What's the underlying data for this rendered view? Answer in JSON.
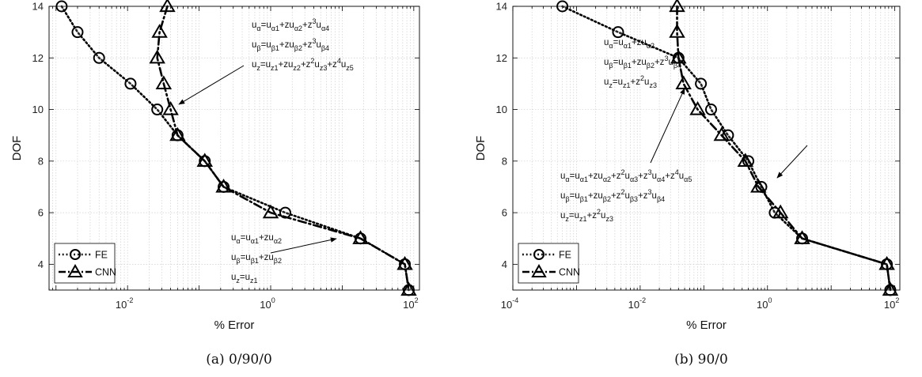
{
  "chart_data": [
    {
      "type": "line",
      "caption": "(a) 0/90/0",
      "xlabel": "% Error",
      "ylabel": "DOF",
      "x_scale": "log",
      "xlim": [
        0.0008,
        120
      ],
      "ylim": [
        3,
        14
      ],
      "xticks": [
        {
          "value": 0.01,
          "base": "10",
          "exp": "-2"
        },
        {
          "value": 1,
          "base": "10",
          "exp": "0"
        },
        {
          "value": 100,
          "base": "10",
          "exp": "2"
        }
      ],
      "yticks": [
        4,
        6,
        8,
        10,
        12,
        14
      ],
      "grid": true,
      "legend_position": "bottom-left",
      "series": [
        {
          "name": "FE",
          "marker": "circle",
          "linestyle": "dotted",
          "x": [
            0.0012,
            0.002,
            0.004,
            0.011,
            0.026,
            0.05,
            0.12,
            0.22,
            1.6,
            18,
            75,
            85
          ],
          "y": [
            14,
            13,
            12,
            11,
            10,
            9,
            8,
            7,
            6,
            5,
            4,
            3
          ]
        },
        {
          "name": "CNN",
          "marker": "triangle",
          "linestyle": "dashdot",
          "x": [
            0.036,
            0.028,
            0.026,
            0.032,
            0.04,
            0.05,
            0.12,
            0.22,
            1.0,
            18,
            75,
            85
          ],
          "y": [
            14,
            13,
            12,
            11,
            10,
            9,
            8,
            7,
            6,
            5,
            4,
            3
          ]
        }
      ],
      "annotations": [
        {
          "lines": [
            {
              "parts": [
                [
                  "u",
                  ""
                ],
                [
                  "α",
                  "sub"
                ],
                [
                  "=u",
                  ""
                ],
                [
                  "α1",
                  "sub"
                ],
                [
                  "+zu",
                  ""
                ],
                [
                  "α2",
                  "sub"
                ],
                [
                  "+z",
                  ""
                ],
                [
                  "3",
                  "sup"
                ],
                [
                  "u",
                  ""
                ],
                [
                  "α4",
                  "sub"
                ]
              ]
            },
            {
              "parts": [
                [
                  "u",
                  ""
                ],
                [
                  "β",
                  "sub"
                ],
                [
                  "=u",
                  ""
                ],
                [
                  "β1",
                  "sub"
                ],
                [
                  "+zu",
                  ""
                ],
                [
                  "β2",
                  "sub"
                ],
                [
                  "+z",
                  ""
                ],
                [
                  "3",
                  "sup"
                ],
                [
                  "u",
                  ""
                ],
                [
                  "β4",
                  "sub"
                ]
              ]
            },
            {
              "parts": [
                [
                  "u",
                  ""
                ],
                [
                  "z",
                  "sub"
                ],
                [
                  "=u",
                  ""
                ],
                [
                  "z1",
                  "sub"
                ],
                [
                  "+zu",
                  ""
                ],
                [
                  "z2",
                  "sub"
                ],
                [
                  "+z",
                  ""
                ],
                [
                  "2",
                  "sup"
                ],
                [
                  "u",
                  ""
                ],
                [
                  "z3",
                  "sub"
                ],
                [
                  "+z",
                  ""
                ],
                [
                  "4",
                  "sup"
                ],
                [
                  "u",
                  ""
                ],
                [
                  "z5",
                  "sub"
                ]
              ]
            }
          ]
        },
        {
          "lines": [
            {
              "parts": [
                [
                  "u",
                  ""
                ],
                [
                  "α",
                  "sub"
                ],
                [
                  "=u",
                  ""
                ],
                [
                  "α1",
                  "sub"
                ],
                [
                  "+zu",
                  ""
                ],
                [
                  "α2",
                  "sub"
                ]
              ]
            },
            {
              "parts": [
                [
                  "u",
                  ""
                ],
                [
                  "β",
                  "sub"
                ],
                [
                  "=u",
                  ""
                ],
                [
                  "β1",
                  "sub"
                ],
                [
                  "+zu",
                  ""
                ],
                [
                  "β2",
                  "sub"
                ]
              ]
            },
            {
              "parts": [
                [
                  "u",
                  ""
                ],
                [
                  "z",
                  "sub"
                ],
                [
                  "=u",
                  ""
                ],
                [
                  "z1",
                  "sub"
                ]
              ]
            }
          ]
        }
      ]
    },
    {
      "type": "line",
      "caption": "(b) 90/0",
      "xlabel": "% Error",
      "ylabel": "DOF",
      "x_scale": "log",
      "xlim": [
        0.0001,
        120
      ],
      "ylim": [
        3,
        14
      ],
      "xticks": [
        {
          "value": 0.0001,
          "base": "10",
          "exp": "-4"
        },
        {
          "value": 0.01,
          "base": "10",
          "exp": "-2"
        },
        {
          "value": 1,
          "base": "10",
          "exp": "0"
        },
        {
          "value": 100,
          "base": "10",
          "exp": "2"
        }
      ],
      "yticks": [
        4,
        6,
        8,
        10,
        12,
        14
      ],
      "grid": true,
      "legend_position": "bottom-left",
      "series": [
        {
          "name": "FE",
          "marker": "circle",
          "linestyle": "dotted",
          "x": [
            0.0006,
            0.0045,
            0.04,
            0.09,
            0.13,
            0.24,
            0.5,
            0.8,
            1.3,
            3.5,
            75,
            85
          ],
          "y": [
            14,
            13,
            12,
            11,
            10,
            9,
            8,
            7,
            6,
            5,
            4,
            3
          ]
        },
        {
          "name": "CNN",
          "marker": "triangle",
          "linestyle": "dashdot",
          "x": [
            0.038,
            0.038,
            0.04,
            0.048,
            0.08,
            0.19,
            0.45,
            0.72,
            1.6,
            3.5,
            75,
            85
          ],
          "y": [
            14,
            13,
            12,
            11,
            10,
            9,
            8,
            7,
            6,
            5,
            4,
            3
          ]
        }
      ],
      "annotations": [
        {
          "lines": [
            {
              "parts": [
                [
                  "u",
                  ""
                ],
                [
                  "α",
                  "sub"
                ],
                [
                  "=u",
                  ""
                ],
                [
                  "α1",
                  "sub"
                ],
                [
                  "+zu",
                  ""
                ],
                [
                  "α2",
                  "sub"
                ]
              ]
            },
            {
              "parts": [
                [
                  "u",
                  ""
                ],
                [
                  "β",
                  "sub"
                ],
                [
                  "=u",
                  ""
                ],
                [
                  "β1",
                  "sub"
                ],
                [
                  "+zu",
                  ""
                ],
                [
                  "β2",
                  "sub"
                ],
                [
                  "+z",
                  ""
                ],
                [
                  "3",
                  "sup"
                ],
                [
                  "u",
                  ""
                ],
                [
                  "β4",
                  "sub"
                ]
              ]
            },
            {
              "parts": [
                [
                  "u",
                  ""
                ],
                [
                  "z",
                  "sub"
                ],
                [
                  "=u",
                  ""
                ],
                [
                  "z1",
                  "sub"
                ],
                [
                  "+z",
                  ""
                ],
                [
                  "2",
                  "sup"
                ],
                [
                  "u",
                  ""
                ],
                [
                  "z3",
                  "sub"
                ]
              ]
            }
          ]
        },
        {
          "lines": [
            {
              "parts": [
                [
                  "u",
                  ""
                ],
                [
                  "α",
                  "sub"
                ],
                [
                  "=u",
                  ""
                ],
                [
                  "α1",
                  "sub"
                ],
                [
                  "+zu",
                  ""
                ],
                [
                  "α2",
                  "sub"
                ],
                [
                  "+z",
                  ""
                ],
                [
                  "2",
                  "sup"
                ],
                [
                  "u",
                  ""
                ],
                [
                  "α3",
                  "sub"
                ],
                [
                  "+z",
                  ""
                ],
                [
                  "3",
                  "sup"
                ],
                [
                  "u",
                  ""
                ],
                [
                  "α4",
                  "sub"
                ],
                [
                  "+z",
                  ""
                ],
                [
                  "4",
                  "sup"
                ],
                [
                  "u",
                  ""
                ],
                [
                  "α5",
                  "sub"
                ]
              ]
            },
            {
              "parts": [
                [
                  "u",
                  ""
                ],
                [
                  "β",
                  "sub"
                ],
                [
                  "=u",
                  ""
                ],
                [
                  "β1",
                  "sub"
                ],
                [
                  "+zu",
                  ""
                ],
                [
                  "β2",
                  "sub"
                ],
                [
                  "+z",
                  ""
                ],
                [
                  "2",
                  "sup"
                ],
                [
                  "u",
                  ""
                ],
                [
                  "β3",
                  "sub"
                ],
                [
                  "+z",
                  ""
                ],
                [
                  "3",
                  "sup"
                ],
                [
                  "u",
                  ""
                ],
                [
                  "β4",
                  "sub"
                ]
              ]
            },
            {
              "parts": [
                [
                  "u",
                  ""
                ],
                [
                  "z",
                  "sub"
                ],
                [
                  "=u",
                  ""
                ],
                [
                  "z1",
                  "sub"
                ],
                [
                  "+z",
                  ""
                ],
                [
                  "2",
                  "sup"
                ],
                [
                  "u",
                  ""
                ],
                [
                  "z3",
                  "sub"
                ]
              ]
            }
          ]
        }
      ]
    }
  ]
}
